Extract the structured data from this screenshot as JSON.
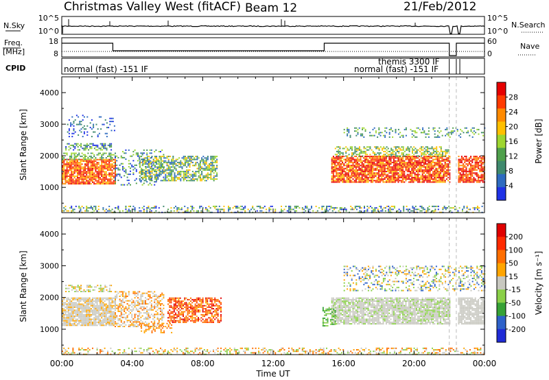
{
  "header": {
    "title": "Christmas Valley West (fitACF)",
    "beam": "Beam 12",
    "date": "21/Feb/2012"
  },
  "nsky_panel": {
    "left_label": "N.Sky",
    "right_label": "N.Search",
    "ticks_left": [
      "10^5",
      "10^0"
    ],
    "ticks_right": [
      "10^5",
      "10^0"
    ]
  },
  "freq_panel": {
    "left_label_1": "Freq.",
    "left_label_2": "[MHz]",
    "right_label": "Nave",
    "ticks_left": [
      "18",
      "8"
    ],
    "ticks_right": [
      "60",
      "0"
    ]
  },
  "cpid_panel": {
    "label": "CPID",
    "programs": [
      "normal (fast) -151 IF",
      "themis 3300 IF",
      "normal (fast) -151 IF"
    ]
  },
  "chart_data": [
    {
      "type": "heatmap",
      "name": "power",
      "ylabel": "Slant Range [km]",
      "ylim": [
        200,
        4500
      ],
      "yticks": [
        1000,
        2000,
        3000,
        4000
      ],
      "colorbar_label": "Power [dB]",
      "colorbar_ticks": [
        4,
        8,
        12,
        16,
        20,
        24,
        28
      ],
      "colorbar_range": [
        0,
        32
      ]
    },
    {
      "type": "heatmap",
      "name": "velocity",
      "ylabel": "Slant Range [km]",
      "ylim": [
        200,
        4500
      ],
      "yticks": [
        1000,
        2000,
        3000,
        4000
      ],
      "colorbar_label": "Velocity [m s⁻¹]",
      "colorbar_ticks": [
        200,
        100,
        50,
        15,
        -15,
        -50,
        -100,
        -200
      ]
    }
  ],
  "xaxis": {
    "label": "Time UT",
    "ticks": [
      "00:00",
      "04:00",
      "08:00",
      "12:00",
      "16:00",
      "20:00",
      "00:00"
    ]
  },
  "colors": {
    "power": [
      "#1f32e6",
      "#2e6bc0",
      "#3f8a6e",
      "#4fa04c",
      "#9ed630",
      "#ffc000",
      "#ff8a00",
      "#ff3a00",
      "#e60000"
    ],
    "velocity": [
      "#1f2bd6",
      "#2e62c9",
      "#37a236",
      "#8ad048",
      "#c8c8c0",
      "#ffa500",
      "#ff6e00",
      "#ff2a00",
      "#e00000"
    ]
  }
}
